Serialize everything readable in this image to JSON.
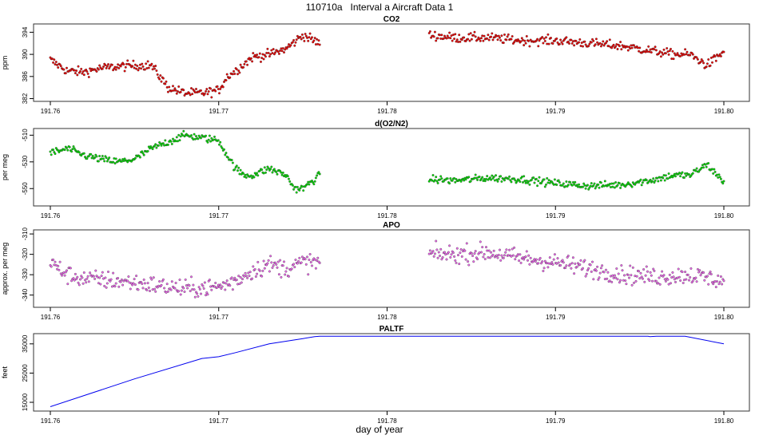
{
  "figure": {
    "title": "110710a   Interval a Aircraft Data 1",
    "xlabel": "day of year"
  },
  "colors": {
    "co2": "#ee0000",
    "o2n2": "#00dd00",
    "apo": "#ee66ee",
    "paltf": "#0000ee",
    "outline": "#333333"
  },
  "chart_data": [
    {
      "type": "scatter",
      "title": "CO2",
      "ylabel": "ppm",
      "xlim": [
        191.76,
        191.8
      ],
      "ylim": [
        381.5,
        395.5
      ],
      "xticks": [
        "191.76",
        "191.77",
        "191.78",
        "191.79",
        "191.80"
      ],
      "yticks": [
        382,
        386,
        390,
        394
      ],
      "noise": 0.6,
      "segments": [
        {
          "x": [
            191.76,
            191.761,
            191.762,
            191.763,
            191.764,
            191.765,
            191.766,
            191.767,
            191.768,
            191.769,
            191.77,
            191.7705,
            191.771,
            191.772,
            191.773,
            191.774,
            191.775,
            191.776
          ],
          "y": [
            389.0,
            387.0,
            386.8,
            387.5,
            387.8,
            388.0,
            388.0,
            384.0,
            383.0,
            383.0,
            383.5,
            386.0,
            387.0,
            389.5,
            390.0,
            391.0,
            393.5,
            392.0
          ]
        },
        {
          "x": [
            191.7825,
            191.784,
            191.786,
            191.788,
            191.79,
            191.792,
            191.794,
            191.796,
            191.797,
            191.798,
            191.799,
            191.8
          ],
          "y": [
            393.5,
            393.0,
            393.0,
            392.5,
            392.5,
            392.0,
            391.5,
            390.5,
            390.0,
            390.0,
            388.0,
            390.5
          ]
        }
      ]
    },
    {
      "type": "scatter",
      "title": "d(O2/N2)",
      "ylabel": "per meg",
      "xlim": [
        191.76,
        191.8
      ],
      "ylim": [
        -563,
        -505
      ],
      "xticks": [
        "191.76",
        "191.77",
        "191.78",
        "191.79",
        "191.80"
      ],
      "yticks": [
        -510,
        -530,
        -550
      ],
      "noise": 2.0,
      "segments": [
        {
          "x": [
            191.76,
            191.7605,
            191.761,
            191.762,
            191.763,
            191.764,
            191.765,
            191.766,
            191.767,
            191.768,
            191.769,
            191.77,
            191.7705,
            191.771,
            191.7715,
            191.772,
            191.773,
            191.774,
            191.7745,
            191.775,
            191.776
          ],
          "y": [
            -523,
            -522,
            -520,
            -525,
            -528,
            -530,
            -528,
            -520,
            -515,
            -510,
            -512,
            -514,
            -525,
            -535,
            -540,
            -540,
            -535,
            -540,
            -550,
            -550,
            -540
          ]
        },
        {
          "x": [
            191.7825,
            191.784,
            191.786,
            191.788,
            191.79,
            191.792,
            191.794,
            191.796,
            191.797,
            191.798,
            191.799,
            191.8
          ],
          "y": [
            -543,
            -544,
            -542,
            -543,
            -546,
            -548,
            -547,
            -543,
            -540,
            -540,
            -532,
            -545
          ]
        }
      ]
    },
    {
      "type": "scatter",
      "title": "APO",
      "ylabel": "approx. per meg",
      "xlim": [
        191.76,
        191.8
      ],
      "ylim": [
        -346,
        -308
      ],
      "xticks": [
        "191.76",
        "191.77",
        "191.78",
        "191.79",
        "191.80"
      ],
      "yticks": [
        -310,
        -320,
        -330,
        -340
      ],
      "noise": 3.2,
      "segments": [
        {
          "x": [
            191.76,
            191.761,
            191.762,
            191.764,
            191.766,
            191.768,
            191.77,
            191.771,
            191.772,
            191.773,
            191.774,
            191.775,
            191.776
          ],
          "y": [
            -324,
            -330,
            -332,
            -333,
            -335,
            -337,
            -336,
            -333,
            -328,
            -325,
            -327,
            -324,
            -324
          ]
        },
        {
          "x": [
            191.7825,
            191.784,
            191.786,
            191.788,
            191.79,
            191.792,
            191.794,
            191.796,
            191.798,
            191.8
          ],
          "y": [
            -320,
            -320,
            -319,
            -322,
            -324,
            -327,
            -330,
            -331,
            -330,
            -333
          ]
        }
      ]
    },
    {
      "type": "line",
      "title": "PALTF",
      "ylabel": "feet",
      "xlim": [
        191.76,
        191.8
      ],
      "ylim": [
        12000,
        38500
      ],
      "xticks": [
        "191.76",
        "191.77",
        "191.78",
        "191.79",
        "191.80"
      ],
      "yticks": [
        15000,
        25000,
        35000
      ],
      "series": [
        {
          "name": "PALTF",
          "x": [
            191.76,
            191.765,
            191.769,
            191.77,
            191.771,
            191.773,
            191.775,
            191.7757,
            191.776,
            191.7955,
            191.7956,
            191.796,
            191.7977,
            191.8
          ],
          "y": [
            13500,
            23000,
            30000,
            30600,
            32000,
            35000,
            36800,
            37500,
            37600,
            37600,
            37500,
            37600,
            37600,
            35000
          ]
        }
      ]
    }
  ]
}
